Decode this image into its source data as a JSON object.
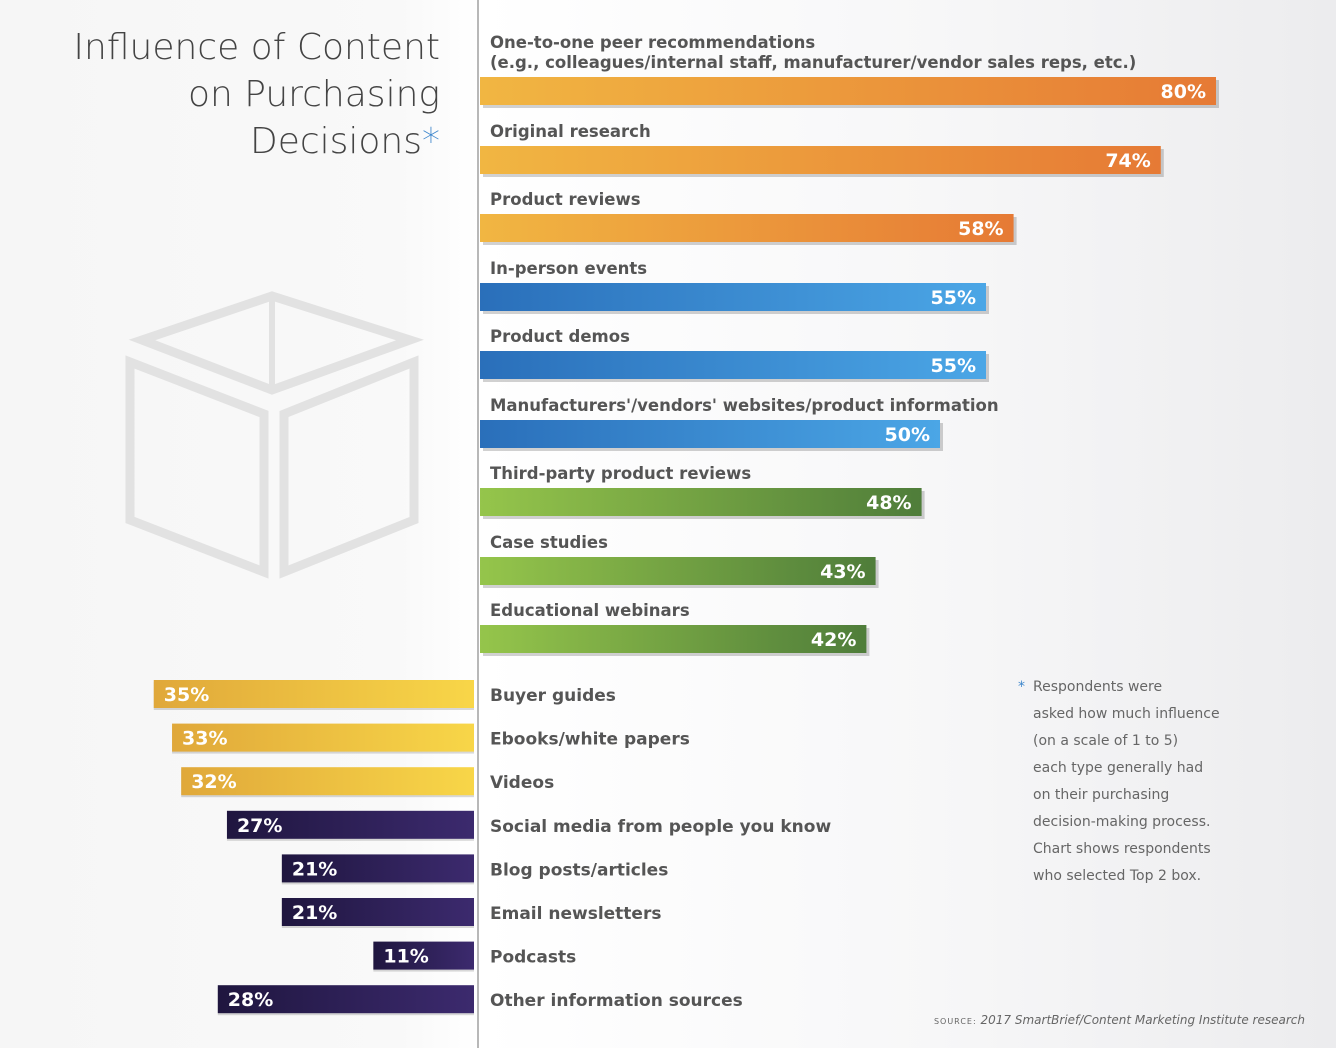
{
  "title": {
    "line1": "Influence of Content",
    "line2": "on Purchasing",
    "line3": "Decisions",
    "asterisk": "*"
  },
  "note": {
    "marker": "*",
    "lines": [
      "Respondents were",
      "asked how much influence",
      "(on a scale of 1 to 5)",
      "each type generally had",
      "on their purchasing",
      "decision-making process.",
      "Chart shows respondents",
      "who selected Top 2 box."
    ]
  },
  "source": {
    "label": "SOURCE:",
    "text": "2017 SmartBrief/Content Marketing Institute research"
  },
  "colors": {
    "orange": [
      "#f1b642",
      "#e67a35"
    ],
    "blue": [
      "#2a6fba",
      "#4ba6e6"
    ],
    "green": [
      "#95c54b",
      "#4f7d3a"
    ],
    "yellow": [
      "#f8d648",
      "#e0a83a"
    ],
    "purple": [
      "#3c2a6e",
      "#1f163f"
    ],
    "axis": "#b8b8b8",
    "cube": "#e2e2e2"
  },
  "chart_data": {
    "type": "bar",
    "unit": "%",
    "series": [
      {
        "group": "right",
        "categories": [
          "One-to-one peer recommendations|(e.g., colleagues/internal staff, manufacturer/vendor sales reps, etc.)",
          "Original research",
          "Product reviews",
          "In-person events",
          "Product demos",
          "Manufacturers'/vendors' websites/product information",
          "Third-party product reviews",
          "Case studies",
          "Educational webinars"
        ],
        "values": [
          80,
          74,
          58,
          55,
          55,
          50,
          48,
          43,
          42
        ],
        "labels": [
          "80%",
          "74%",
          "58%",
          "55%",
          "55%",
          "50%",
          "48%",
          "43%",
          "42%"
        ],
        "color_groups": [
          "orange",
          "orange",
          "orange",
          "blue",
          "blue",
          "blue",
          "green",
          "green",
          "green"
        ]
      },
      {
        "group": "left",
        "categories": [
          "Buyer guides",
          "Ebooks/white papers",
          "Videos",
          "Social media from people you know",
          "Blog posts/articles",
          "Email newsletters",
          "Podcasts",
          "Other information sources"
        ],
        "values": [
          35,
          33,
          32,
          27,
          21,
          21,
          11,
          28
        ],
        "labels": [
          "35%",
          "33%",
          "32%",
          "27%",
          "21%",
          "21%",
          "11%",
          "28%"
        ],
        "color_groups": [
          "yellow",
          "yellow",
          "yellow",
          "purple",
          "purple",
          "purple",
          "purple",
          "purple"
        ]
      }
    ]
  }
}
